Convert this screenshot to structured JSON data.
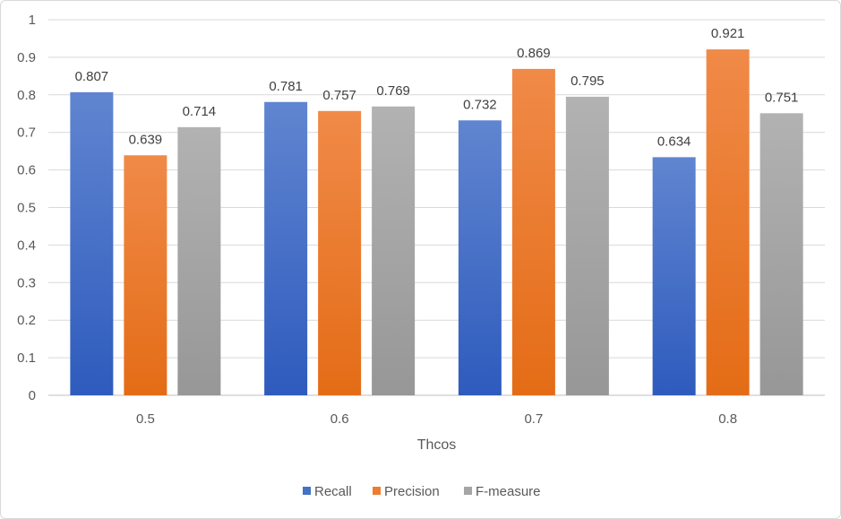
{
  "chart_data": {
    "type": "bar",
    "title": "",
    "xlabel": "Thcos",
    "ylabel": "",
    "categories": [
      "0.5",
      "0.6",
      "0.7",
      "0.8"
    ],
    "series": [
      {
        "name": "Recall",
        "values": [
          0.807,
          0.781,
          0.732,
          0.634
        ],
        "color": "#4472c4"
      },
      {
        "name": "Precision",
        "values": [
          0.639,
          0.757,
          0.869,
          0.921
        ],
        "color": "#ed7d31"
      },
      {
        "name": "F-measure",
        "values": [
          0.714,
          0.769,
          0.795,
          0.751
        ],
        "color": "#a5a5a5"
      }
    ],
    "ylim": [
      0,
      1
    ],
    "yticks": [
      "0",
      "0.1",
      "0.2",
      "0.3",
      "0.4",
      "0.5",
      "0.6",
      "0.7",
      "0.8",
      "0.9",
      "1"
    ],
    "data_labels": [
      [
        "0.807",
        "0.781",
        "0.732",
        "0.634"
      ],
      [
        "0.639",
        "0.757",
        "0.869",
        "0.921"
      ],
      [
        "0.714",
        "0.769",
        "0.795",
        "0.751"
      ]
    ],
    "grid": true,
    "legend": "bottom"
  }
}
